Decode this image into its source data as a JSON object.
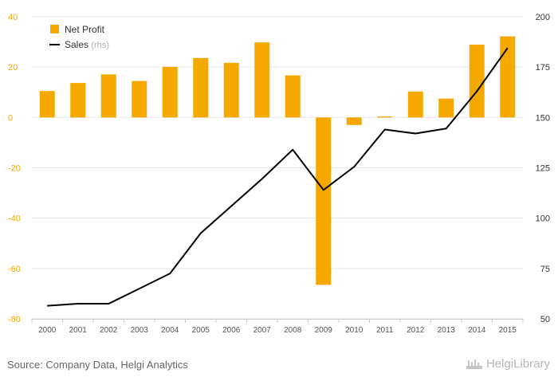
{
  "chart_data": {
    "type": "bar",
    "categories": [
      "2000",
      "2001",
      "2002",
      "2003",
      "2004",
      "2005",
      "2006",
      "2007",
      "2008",
      "2009",
      "2010",
      "2011",
      "2012",
      "2013",
      "2014",
      "2015"
    ],
    "series": [
      {
        "name": "Net Profit",
        "type": "bar",
        "axis": "left",
        "color": "#f5a800",
        "values": [
          10.5,
          13.7,
          17.1,
          14.5,
          20.1,
          23.6,
          21.7,
          29.8,
          16.7,
          -66.5,
          -3.0,
          0.4,
          10.3,
          7.5,
          28.9,
          32.2
        ]
      },
      {
        "name": "Sales",
        "note": "(rhs)",
        "type": "line",
        "axis": "right",
        "color": "#000000",
        "values": [
          56.5,
          57.5,
          57.5,
          65.0,
          72.5,
          92.5,
          106.0,
          119.5,
          134.0,
          114.0,
          125.5,
          144.0,
          142.0,
          144.5,
          163.0,
          184.5
        ]
      }
    ],
    "y_left": {
      "ticks": [
        "40",
        "20",
        "0",
        "-20",
        "-40",
        "-60",
        "-80"
      ],
      "range": [
        -80,
        40
      ],
      "color": "#f5a800"
    },
    "y_right": {
      "ticks": [
        "200",
        "175",
        "150",
        "125",
        "100",
        "75",
        "50"
      ],
      "range": [
        50,
        200
      ],
      "color": "#333333"
    },
    "grid": true,
    "legend_position": "top-left"
  },
  "footer": {
    "source": "Source: Company Data, Helgi Analytics",
    "brand": "HelgiLibrary"
  }
}
